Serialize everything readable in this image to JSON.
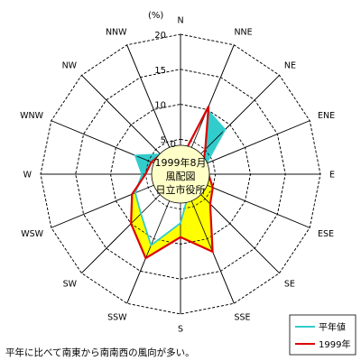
{
  "chart_data": {
    "type": "radar",
    "unit": "(%)",
    "radial_max": 20,
    "ticks": [
      5,
      10,
      15,
      20
    ],
    "tick_labels": [
      "5",
      "10",
      "15",
      "20"
    ],
    "zero_label": "0",
    "directions": [
      "N",
      "NNE",
      "NE",
      "ENE",
      "E",
      "ESE",
      "SE",
      "SSE",
      "S",
      "SSW",
      "SW",
      "WSW",
      "W",
      "WNW",
      "NW",
      "NNW"
    ],
    "series": [
      {
        "name": "平年値",
        "color": "#33CCCC",
        "values": [
          2.0,
          10.0,
          9.0,
          4.0,
          2.5,
          2.5,
          2.0,
          3.0,
          7.0,
          11.0,
          8.0,
          7.0,
          5.5,
          7.0,
          4.0,
          3.0
        ]
      },
      {
        "name": "1999年",
        "color": "#DD0000",
        "values": [
          2.0,
          10.5,
          5.0,
          3.5,
          4.0,
          5.0,
          6.0,
          12.0,
          9.0,
          13.0,
          10.0,
          7.5,
          5.0,
          4.5,
          4.0,
          3.0
        ]
      }
    ],
    "difference_fill_color": "#FFFF00",
    "center_lines": [
      "1999年8月",
      "風配図",
      "日立市役所"
    ],
    "legend_placement": "bottom-right"
  },
  "caption": "平年に比べて南東から南南西の風向が多い。"
}
